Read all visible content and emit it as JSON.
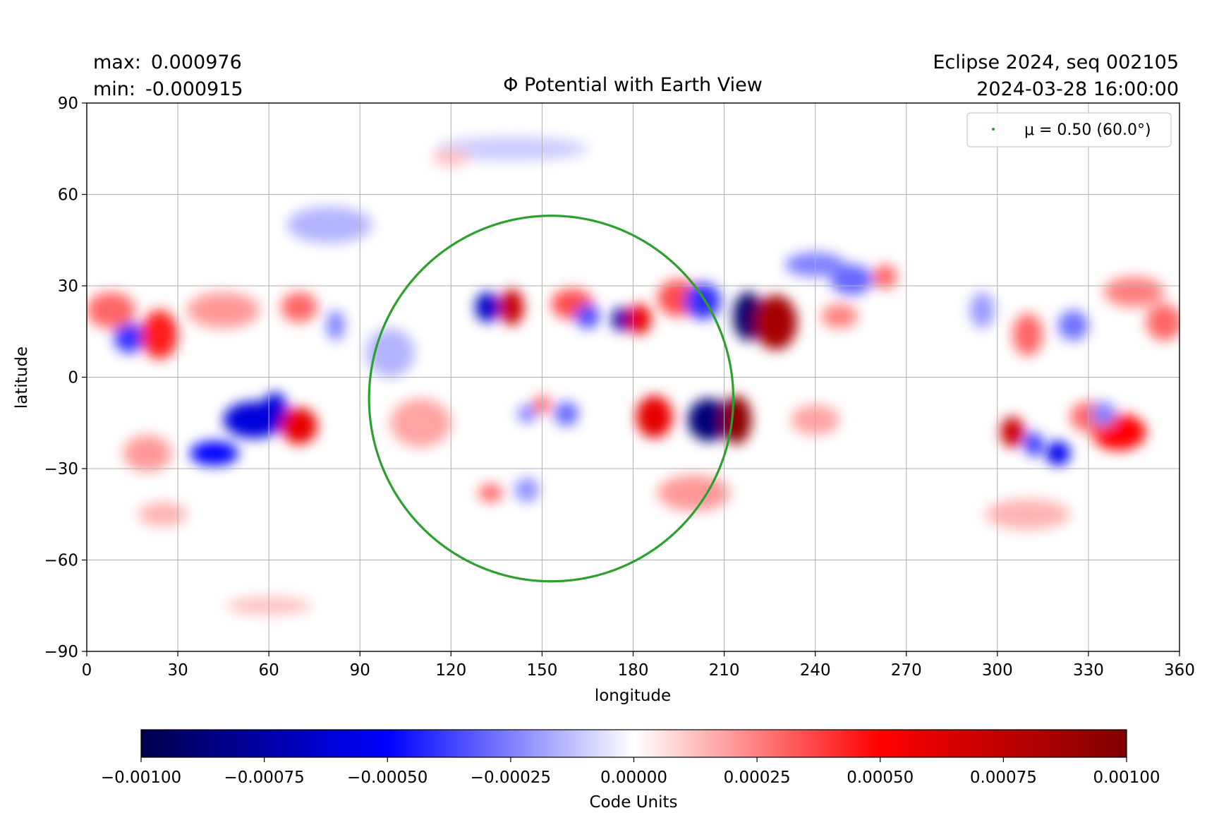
{
  "header": {
    "max_label": "max:",
    "max_value": "0.000976",
    "min_label": "min:",
    "min_value": "-0.000915",
    "run_label": "Eclipse 2024, seq 002105",
    "timestamp": "2024-03-28 16:00:00"
  },
  "chart_data": {
    "type": "heatmap",
    "title": "Φ Potential with Earth View",
    "xlabel": "longitude",
    "ylabel": "latitude",
    "xlim": [
      0,
      360
    ],
    "ylim": [
      -90,
      90
    ],
    "xticks": [
      0,
      30,
      60,
      90,
      120,
      150,
      180,
      210,
      240,
      270,
      300,
      330,
      360
    ],
    "yticks": [
      -90,
      -60,
      -30,
      0,
      30,
      60,
      90
    ],
    "grid": true,
    "legend": {
      "position": "top-right",
      "entries": [
        {
          "label": "μ = 0.50 (60.0°)",
          "color": "#2ca02c"
        }
      ]
    },
    "colormap": "seismic",
    "colorbar": {
      "label": "Code Units",
      "ticks": [
        "−0.00100",
        "−0.00075",
        "−0.00050",
        "−0.00025",
        "0.00000",
        "0.00025",
        "0.00050",
        "0.00075",
        "0.00100"
      ],
      "range": [
        -0.001,
        0.001
      ]
    },
    "regions": [
      {
        "lon": 218,
        "lat": 20,
        "value": -0.00092,
        "rlon": 5,
        "rlat": 8
      },
      {
        "lon": 227,
        "lat": 18,
        "value": 0.00085,
        "rlon": 7,
        "rlat": 9
      },
      {
        "lon": 205,
        "lat": -14,
        "value": -0.00088,
        "rlon": 7,
        "rlat": 7
      },
      {
        "lon": 214,
        "lat": -14,
        "value": 0.00095,
        "rlon": 5,
        "rlat": 8
      },
      {
        "lon": 187,
        "lat": -13,
        "value": 0.0006,
        "rlon": 6,
        "rlat": 7
      },
      {
        "lon": 176,
        "lat": 19,
        "value": -0.00075,
        "rlon": 3,
        "rlat": 4
      },
      {
        "lon": 182,
        "lat": 19,
        "value": 0.0006,
        "rlon": 4,
        "rlat": 5
      },
      {
        "lon": 140,
        "lat": 23,
        "value": 0.00072,
        "rlon": 4,
        "rlat": 6
      },
      {
        "lon": 132,
        "lat": 23,
        "value": -0.00065,
        "rlon": 4,
        "rlat": 5
      },
      {
        "lon": 160,
        "lat": 24,
        "value": 0.00035,
        "rlon": 7,
        "rlat": 5
      },
      {
        "lon": 165,
        "lat": 20,
        "value": -0.00035,
        "rlon": 4,
        "rlat": 4
      },
      {
        "lon": 195,
        "lat": 26,
        "value": 0.00035,
        "rlon": 7,
        "rlat": 6
      },
      {
        "lon": 203,
        "lat": 25,
        "value": -0.0004,
        "rlon": 6,
        "rlat": 6
      },
      {
        "lon": 55,
        "lat": -14,
        "value": -0.0006,
        "rlon": 10,
        "rlat": 6
      },
      {
        "lon": 42,
        "lat": -25,
        "value": -0.0005,
        "rlon": 8,
        "rlat": 4
      },
      {
        "lon": 62,
        "lat": -10,
        "value": -0.0006,
        "rlon": 4,
        "rlat": 5
      },
      {
        "lon": 70,
        "lat": -16,
        "value": 0.0006,
        "rlon": 6,
        "rlat": 6
      },
      {
        "lon": 14,
        "lat": 13,
        "value": -0.0004,
        "rlon": 5,
        "rlat": 5
      },
      {
        "lon": 24,
        "lat": 14,
        "value": 0.00045,
        "rlon": 6,
        "rlat": 8
      },
      {
        "lon": 8,
        "lat": 22,
        "value": 0.0003,
        "rlon": 8,
        "rlat": 6
      },
      {
        "lon": 45,
        "lat": 22,
        "value": 0.0002,
        "rlon": 12,
        "rlat": 6
      },
      {
        "lon": 70,
        "lat": 23,
        "value": 0.0003,
        "rlon": 6,
        "rlat": 5
      },
      {
        "lon": 82,
        "lat": 17,
        "value": -0.00025,
        "rlon": 3,
        "rlat": 5
      },
      {
        "lon": 305,
        "lat": -18,
        "value": 0.0007,
        "rlon": 4,
        "rlat": 5
      },
      {
        "lon": 320,
        "lat": -25,
        "value": -0.00055,
        "rlon": 4,
        "rlat": 4
      },
      {
        "lon": 312,
        "lat": -22,
        "value": -0.0004,
        "rlon": 3,
        "rlat": 4
      },
      {
        "lon": 340,
        "lat": -18,
        "value": 0.0005,
        "rlon": 9,
        "rlat": 6
      },
      {
        "lon": 330,
        "lat": -13,
        "value": 0.0003,
        "rlon": 6,
        "rlat": 5
      },
      {
        "lon": 335,
        "lat": -12,
        "value": -0.00025,
        "rlon": 4,
        "rlat": 4
      },
      {
        "lon": 345,
        "lat": 28,
        "value": 0.00025,
        "rlon": 10,
        "rlat": 5
      },
      {
        "lon": 310,
        "lat": 14,
        "value": 0.0003,
        "rlon": 5,
        "rlat": 7
      },
      {
        "lon": 325,
        "lat": 17,
        "value": -0.00028,
        "rlon": 5,
        "rlat": 5
      },
      {
        "lon": 355,
        "lat": 18,
        "value": 0.0003,
        "rlon": 6,
        "rlat": 6
      },
      {
        "lon": 295,
        "lat": 22,
        "value": -0.0002,
        "rlon": 4,
        "rlat": 6
      },
      {
        "lon": 263,
        "lat": 33,
        "value": 0.0003,
        "rlon": 4,
        "rlat": 4
      },
      {
        "lon": 252,
        "lat": 32,
        "value": -0.0003,
        "rlon": 7,
        "rlat": 5
      },
      {
        "lon": 240,
        "lat": 37,
        "value": -0.00025,
        "rlon": 10,
        "rlat": 4
      },
      {
        "lon": 248,
        "lat": 20,
        "value": 0.00025,
        "rlon": 6,
        "rlat": 4
      },
      {
        "lon": 158,
        "lat": -12,
        "value": -0.0003,
        "rlon": 4,
        "rlat": 4
      },
      {
        "lon": 150,
        "lat": -9,
        "value": 0.0003,
        "rlon": 3,
        "rlat": 3
      },
      {
        "lon": 145,
        "lat": -12,
        "value": -0.00025,
        "rlon": 3,
        "rlat": 3
      },
      {
        "lon": 133,
        "lat": -38,
        "value": 0.0003,
        "rlon": 4,
        "rlat": 3
      },
      {
        "lon": 145,
        "lat": -37,
        "value": -0.00022,
        "rlon": 4,
        "rlat": 4
      },
      {
        "lon": 200,
        "lat": -38,
        "value": 0.0002,
        "rlon": 12,
        "rlat": 6
      },
      {
        "lon": 240,
        "lat": -14,
        "value": 0.00018,
        "rlon": 8,
        "rlat": 5
      },
      {
        "lon": 110,
        "lat": -15,
        "value": 0.00018,
        "rlon": 10,
        "rlat": 8
      },
      {
        "lon": 100,
        "lat": 8,
        "value": -0.00015,
        "rlon": 8,
        "rlat": 8
      },
      {
        "lon": 20,
        "lat": -25,
        "value": 0.0002,
        "rlon": 8,
        "rlat": 6
      },
      {
        "lon": 80,
        "lat": 50,
        "value": -0.00015,
        "rlon": 14,
        "rlat": 6
      },
      {
        "lon": 60,
        "lat": -75,
        "value": 0.00012,
        "rlon": 14,
        "rlat": 3
      },
      {
        "lon": 25,
        "lat": -45,
        "value": 0.00015,
        "rlon": 8,
        "rlat": 4
      },
      {
        "lon": 310,
        "lat": -45,
        "value": 0.00015,
        "rlon": 14,
        "rlat": 5
      },
      {
        "lon": 140,
        "lat": 75,
        "value": -0.0001,
        "rlon": 25,
        "rlat": 4
      },
      {
        "lon": 120,
        "lat": 72,
        "value": 0.00012,
        "rlon": 6,
        "rlat": 3
      }
    ],
    "series": [
      {
        "name": "μ = 0.50 (60.0°)",
        "color": "#2ca02c",
        "shape": "circle",
        "center_lon": 153,
        "center_lat": -7,
        "lon_half_width": 60,
        "lat_half_height": 60
      }
    ]
  }
}
